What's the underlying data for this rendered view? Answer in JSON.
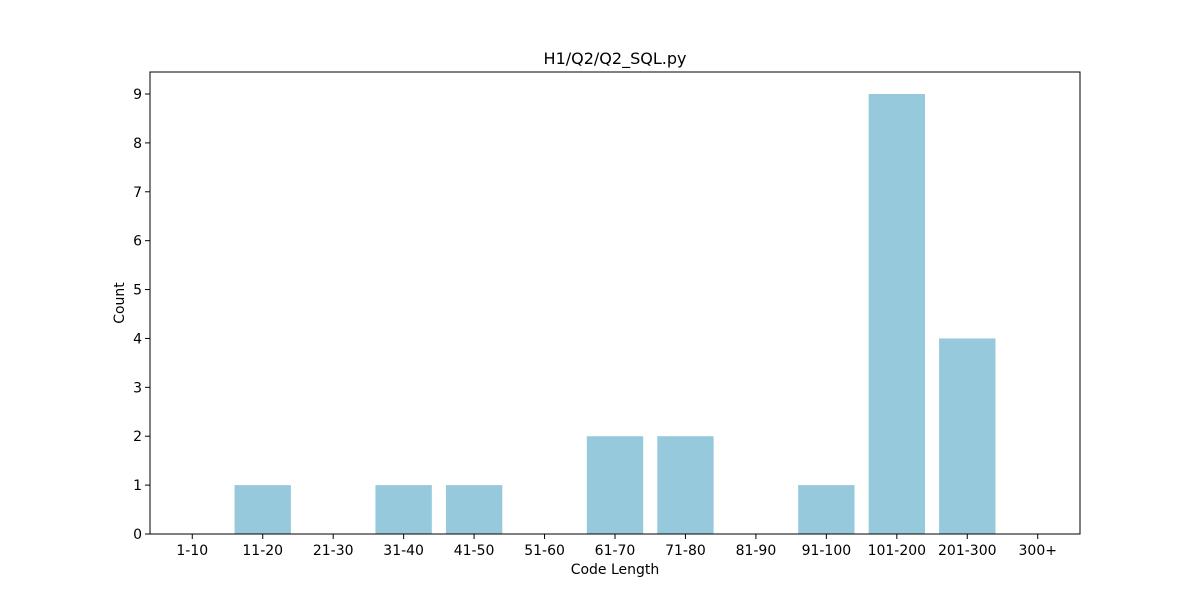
{
  "chart_data": {
    "type": "bar",
    "title": "H1/Q2/Q2_SQL.py",
    "xlabel": "Code Length",
    "ylabel": "Count",
    "categories": [
      "1-10",
      "11-20",
      "21-30",
      "31-40",
      "41-50",
      "51-60",
      "61-70",
      "71-80",
      "81-90",
      "91-100",
      "101-200",
      "201-300",
      "300+"
    ],
    "values": [
      0,
      1,
      0,
      1,
      1,
      0,
      2,
      2,
      0,
      1,
      9,
      4,
      0
    ],
    "ylim": [
      0,
      9.45
    ],
    "yticks": [
      0,
      1,
      2,
      3,
      4,
      5,
      6,
      7,
      8,
      9
    ],
    "grid": false,
    "legend": "none",
    "bar_color": "#96c9dc"
  }
}
